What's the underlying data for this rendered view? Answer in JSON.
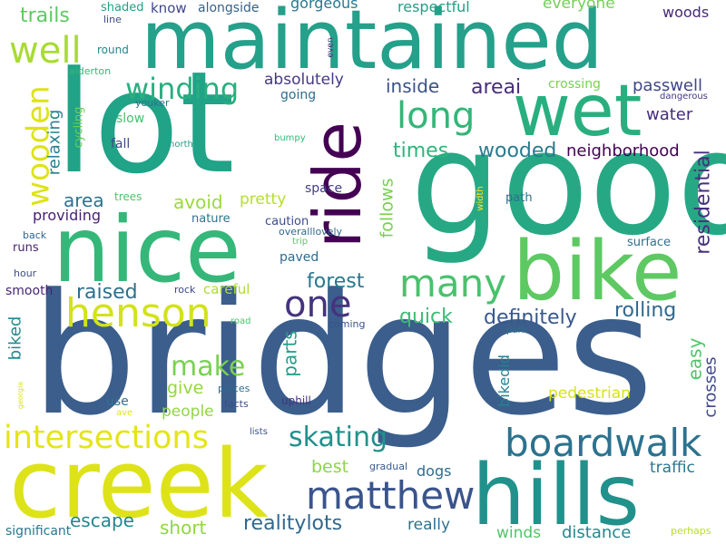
{
  "words": [
    {
      "text": "bridges",
      "color": "#3b5e8c"
    },
    {
      "text": "good",
      "color": "#27a884"
    },
    {
      "text": "lot",
      "color": "#20a387"
    },
    {
      "text": "maintained",
      "color": "#25a08a"
    },
    {
      "text": "creek",
      "color": "#dde318"
    },
    {
      "text": "nice",
      "color": "#35b779"
    },
    {
      "text": "hills",
      "color": "#21918c"
    },
    {
      "text": "bike",
      "color": "#5ec962"
    },
    {
      "text": "wet",
      "color": "#29af7f"
    },
    {
      "text": "ride",
      "color": "#440154"
    },
    {
      "text": "boardwalk",
      "color": "#2c728e"
    },
    {
      "text": "matthew",
      "color": "#3a548c"
    },
    {
      "text": "henson",
      "color": "#d2e21b"
    },
    {
      "text": "intersections",
      "color": "#e5e419"
    },
    {
      "text": "wooden",
      "color": "#dde318"
    },
    {
      "text": "long",
      "color": "#34b679"
    },
    {
      "text": "many",
      "color": "#4ac16d"
    },
    {
      "text": "one",
      "color": "#46337e"
    },
    {
      "text": "well",
      "color": "#a8db34"
    },
    {
      "text": "winding",
      "color": "#29af7f"
    },
    {
      "text": "skating",
      "color": "#21918c"
    },
    {
      "text": "make",
      "color": "#7ad151"
    },
    {
      "text": "trails",
      "color": "#5ec962"
    },
    {
      "text": "forest",
      "color": "#2a788e"
    },
    {
      "text": "definitely",
      "color": "#38588c"
    },
    {
      "text": "rolling",
      "color": "#31688e"
    },
    {
      "text": "realitylots",
      "color": "#31688e"
    },
    {
      "text": "raised",
      "color": "#2d708e"
    },
    {
      "text": "quick",
      "color": "#3dbc74"
    },
    {
      "text": "wooded",
      "color": "#297b8e"
    },
    {
      "text": "residential",
      "color": "#46307e"
    },
    {
      "text": "times",
      "color": "#2fb47c"
    },
    {
      "text": "water",
      "color": "#472d7b"
    },
    {
      "text": "passwell",
      "color": "#3f4788"
    },
    {
      "text": "areai",
      "color": "#472c7a"
    },
    {
      "text": "inside",
      "color": "#3b518b"
    },
    {
      "text": "absolutely",
      "color": "#443983"
    },
    {
      "text": "winds",
      "color": "#52c569"
    },
    {
      "text": "distance",
      "color": "#23888e"
    },
    {
      "text": "relaxing",
      "color": "#27808e"
    },
    {
      "text": "follows",
      "color": "#7ad151"
    },
    {
      "text": "avoid",
      "color": "#9bd93c"
    },
    {
      "text": "area",
      "color": "#2c728e"
    },
    {
      "text": "pretty",
      "color": "#b5de2b"
    },
    {
      "text": "providing",
      "color": "#482173"
    },
    {
      "text": "give",
      "color": "#95d840"
    },
    {
      "text": "people",
      "color": "#90d743"
    },
    {
      "text": "parts",
      "color": "#1f9e89"
    },
    {
      "text": "easy",
      "color": "#50c46a"
    },
    {
      "text": "crosses",
      "color": "#3e4989"
    },
    {
      "text": "neighborhood",
      "color": "#440154"
    },
    {
      "text": "pedestrian",
      "color": "#d8e219"
    },
    {
      "text": "escape",
      "color": "#25858e"
    },
    {
      "text": "short",
      "color": "#8fd744"
    },
    {
      "text": "really",
      "color": "#2b748e"
    },
    {
      "text": "best",
      "color": "#8bd646"
    },
    {
      "text": "dogs",
      "color": "#2f6c8e"
    },
    {
      "text": "traffic",
      "color": "#2a768e"
    },
    {
      "text": "biked",
      "color": "#23898e"
    },
    {
      "text": "bikedid",
      "color": "#26828e"
    },
    {
      "text": "everyone",
      "color": "#73d056"
    },
    {
      "text": "respectful",
      "color": "#1fa187"
    },
    {
      "text": "gorgeous",
      "color": "#2a788e"
    },
    {
      "text": "woods",
      "color": "#482878"
    },
    {
      "text": "know",
      "color": "#3f4889"
    },
    {
      "text": "alongside",
      "color": "#33628d"
    },
    {
      "text": "shaded",
      "color": "#1fa287"
    },
    {
      "text": "line",
      "color": "#3e4c8a"
    },
    {
      "text": "crossing",
      "color": "#77d153"
    },
    {
      "text": "dangerous",
      "color": "#443983"
    },
    {
      "text": "round",
      "color": "#25848e"
    },
    {
      "text": "alderton",
      "color": "#35b779"
    },
    {
      "text": "even",
      "color": "#482374"
    },
    {
      "text": "going",
      "color": "#2e6d8e"
    },
    {
      "text": "slow",
      "color": "#48c16e"
    },
    {
      "text": "cycling",
      "color": "#6ccd5a"
    },
    {
      "text": "youker",
      "color": "#2c728e"
    },
    {
      "text": "fall",
      "color": "#3e4a89"
    },
    {
      "text": "north",
      "color": "#1f9e89"
    },
    {
      "text": "bumpy",
      "color": "#38b977"
    },
    {
      "text": "trees",
      "color": "#4ec36b"
    },
    {
      "text": "space",
      "color": "#433e85"
    },
    {
      "text": "caution",
      "color": "#3d4d8a"
    },
    {
      "text": "nature",
      "color": "#2c738e"
    },
    {
      "text": "width",
      "color": "#fde725"
    },
    {
      "text": "path",
      "color": "#2e6e8e"
    },
    {
      "text": "overalllovely",
      "color": "#30698e"
    },
    {
      "text": "trip",
      "color": "#5cc863"
    },
    {
      "text": "runs",
      "color": "#481f70"
    },
    {
      "text": "back",
      "color": "#32658e"
    },
    {
      "text": "paved",
      "color": "#2f6b8e"
    },
    {
      "text": "surface",
      "color": "#2d708e"
    },
    {
      "text": "hour",
      "color": "#3c4f8a"
    },
    {
      "text": "smooth",
      "color": "#482576"
    },
    {
      "text": "rock",
      "color": "#3f4788"
    },
    {
      "text": "careful",
      "color": "#addc30"
    },
    {
      "text": "road",
      "color": "#50c46a"
    },
    {
      "text": "coming",
      "color": "#3b518b"
    },
    {
      "text": "park",
      "color": "#2e6f8e"
    },
    {
      "text": "use",
      "color": "#2c738e"
    },
    {
      "text": "pieces",
      "color": "#31688e"
    },
    {
      "text": "facts",
      "color": "#3d4e8a"
    },
    {
      "text": "uphill",
      "color": "#46337e"
    },
    {
      "text": "ave",
      "color": "#e2e418"
    },
    {
      "text": "georgia",
      "color": "#dae319"
    },
    {
      "text": "lists",
      "color": "#3a548c"
    },
    {
      "text": "gradual",
      "color": "#38598c"
    },
    {
      "text": "significant",
      "color": "#2a768e"
    },
    {
      "text": "perhaps",
      "color": "#b8de29"
    }
  ]
}
